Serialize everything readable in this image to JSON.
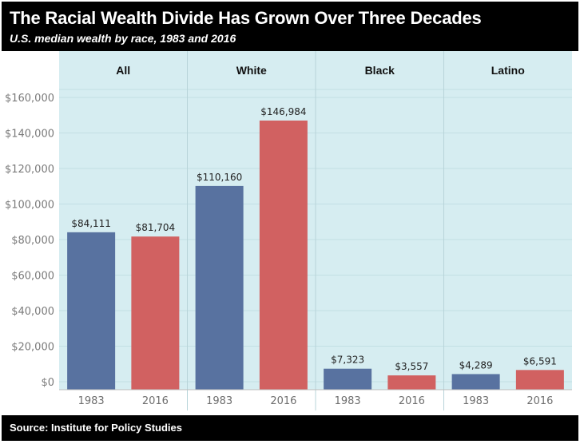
{
  "header": {
    "title": "The Racial Wealth Divide Has Grown Over Three Decades",
    "subtitle": "U.S. median wealth by race, 1983 and 2016"
  },
  "footer": {
    "source": "Source: Institute for Policy Studies"
  },
  "colors": {
    "header_bg": "#000000",
    "plot_bg": "#d6edf1",
    "bar_1983": "#5872a0",
    "bar_2016": "#d16161"
  },
  "chart_data": {
    "type": "bar",
    "title": "The Racial Wealth Divide Has Grown Over Three Decades",
    "subtitle": "U.S. median wealth by race, 1983 and 2016",
    "panels": [
      "All",
      "White",
      "Black",
      "Latino"
    ],
    "years": [
      "1983",
      "2016"
    ],
    "series": [
      {
        "name": "1983",
        "values": [
          84111,
          110160,
          7323,
          4289
        ]
      },
      {
        "name": "2016",
        "values": [
          81704,
          146984,
          3557,
          6591
        ]
      }
    ],
    "data_labels": [
      [
        "$84,111",
        "$81,704"
      ],
      [
        "$110,160",
        "$146,984"
      ],
      [
        "$7,323",
        "$3,557"
      ],
      [
        "$4,289",
        "$6,591"
      ]
    ],
    "ylim": [
      0,
      160000
    ],
    "yticks": [
      0,
      20000,
      40000,
      60000,
      80000,
      100000,
      120000,
      140000,
      160000
    ],
    "ytick_labels": [
      "$0",
      "$20,000",
      "$40,000",
      "$60,000",
      "$80,000",
      "$100,000",
      "$120,000",
      "$140,000",
      "$160,000"
    ],
    "xlabel": "",
    "ylabel": "",
    "grid": true,
    "legend": "none"
  }
}
